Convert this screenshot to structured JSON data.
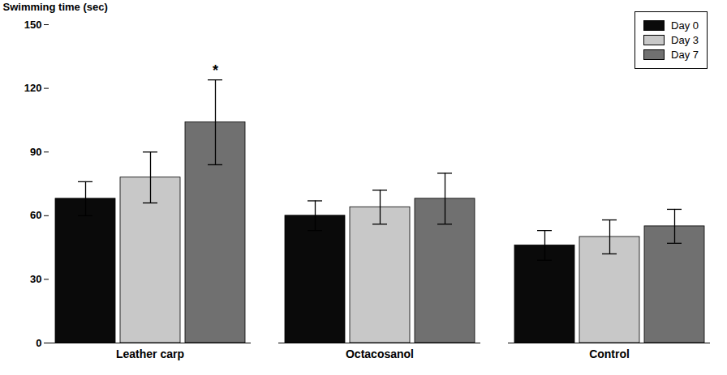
{
  "chart_data": {
    "type": "bar",
    "categories": [
      "Leather carp",
      "Octacosanol",
      "Control"
    ],
    "series": [
      {
        "name": "Day 0",
        "color": "#0a0a0a",
        "values": [
          68,
          60,
          46
        ],
        "errors": [
          8,
          7,
          7
        ]
      },
      {
        "name": "Day 3",
        "color": "#c8c8c8",
        "values": [
          78,
          64,
          50
        ],
        "errors": [
          12,
          8,
          8
        ]
      },
      {
        "name": "Day 7",
        "color": "#707070",
        "values": [
          104,
          68,
          55
        ],
        "errors": [
          20,
          12,
          8
        ]
      }
    ],
    "ylabel": "Swimming time (sec)",
    "ylim": [
      0,
      150
    ],
    "yticks": [
      0,
      30,
      60,
      90,
      120,
      150
    ],
    "grid": false,
    "legend": "upper right",
    "annotations": [
      {
        "text": "*",
        "category": "Leather carp",
        "series": "Day 7"
      }
    ]
  }
}
